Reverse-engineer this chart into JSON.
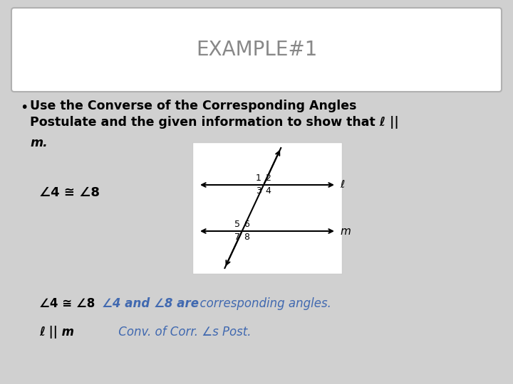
{
  "title": "EXAMPLE#1",
  "title_fontsize": 20,
  "bg_color": "#d0d0d0",
  "title_box_color": "#ffffff",
  "bullet_text_line1": "Use the Converse of the Corresponding Angles",
  "bullet_text_line2": "Postulate and the given information to show that ℓ ||",
  "bullet_text_line3": "m.",
  "given_label": "∠4 ≅ ∠8",
  "step1_left": "∠4 ≅ ∠8",
  "step1_right": "∠4 and ∠8 are",
  "step1_reason": "  corresponding angles.",
  "step2_left": "ℓ || m",
  "step2_reason": "     Conv. of Corr. ∠s Post.",
  "text_color": "#000000",
  "blue_color": "#4169b0",
  "diagram_bg": "#ffffff",
  "font_family": "DejaVu Sans"
}
